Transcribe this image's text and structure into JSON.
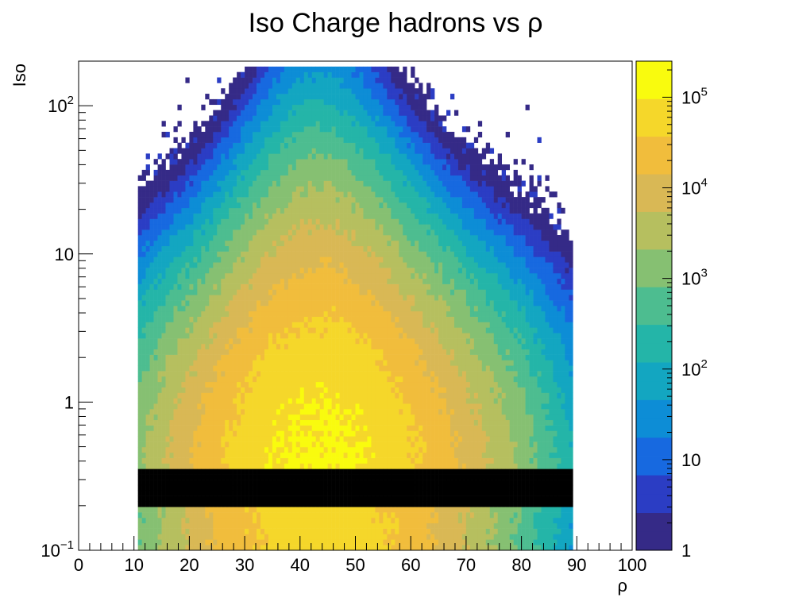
{
  "chart_data": {
    "type": "heatmap",
    "title": "Iso Charge hadrons vs ρ",
    "xlabel": "ρ",
    "ylabel": "Iso",
    "xlim": [
      0,
      100
    ],
    "ylim": [
      0.1,
      200
    ],
    "ylog": true,
    "zlog": true,
    "xticks": [
      "0",
      "10",
      "20",
      "30",
      "40",
      "50",
      "60",
      "70",
      "80",
      "90",
      "100"
    ],
    "yticks": [
      {
        "value": 0.1,
        "base": "10",
        "exp": "−1"
      },
      {
        "value": 1,
        "base": "1",
        "exp": ""
      },
      {
        "value": 10,
        "base": "10",
        "exp": ""
      },
      {
        "value": 100,
        "base": "10",
        "exp": "2"
      }
    ],
    "zrange": [
      1,
      250000
    ],
    "zticks": [
      {
        "value": 1,
        "base": "1",
        "exp": ""
      },
      {
        "value": 10,
        "base": "10",
        "exp": ""
      },
      {
        "value": 100,
        "base": "10",
        "exp": "2"
      },
      {
        "value": 1000,
        "base": "10",
        "exp": "3"
      },
      {
        "value": 10000,
        "base": "10",
        "exp": "4"
      },
      {
        "value": 100000,
        "base": "10",
        "exp": "5"
      }
    ],
    "distribution": {
      "rho_peak": 43,
      "rho_sigma_left": 11,
      "rho_sigma_right": 12.5,
      "peak_counts": 120000,
      "rho_min": 11,
      "rho_max": 89,
      "iso_log_center": -0.45,
      "iso_log_sigma": 0.55,
      "iso_max": 190
    },
    "colormap": [
      "#352a87",
      "#2b3dc4",
      "#1769e0",
      "#0d8dd6",
      "#13a6c1",
      "#24b5a8",
      "#4dbd90",
      "#86c072",
      "#b6bf5f",
      "#d9b855",
      "#f1bd3c",
      "#f5d72a",
      "#f9fb0e"
    ],
    "grid": false,
    "colorbar": "right"
  }
}
